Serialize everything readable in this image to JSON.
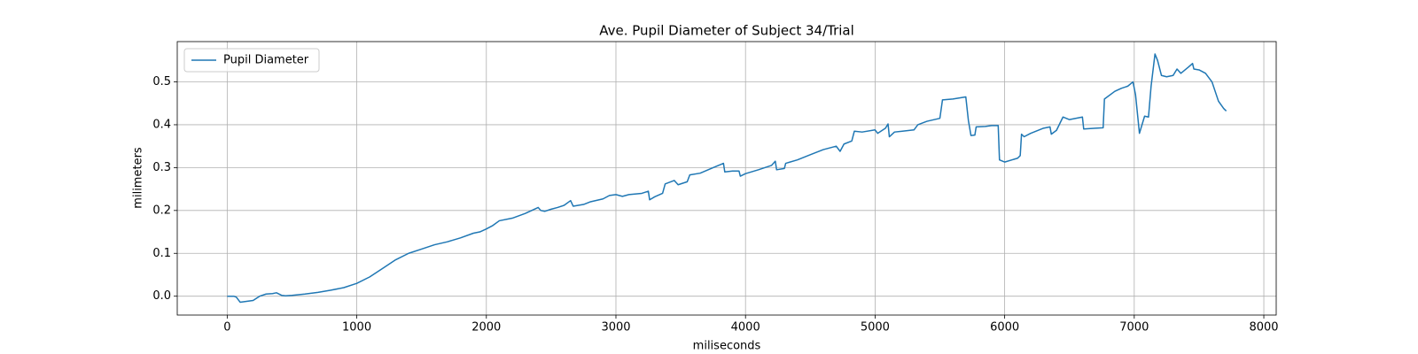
{
  "chart_data": {
    "type": "line",
    "title": "Ave. Pupil Diameter of Subject 34/Trial",
    "x_label": "miliseconds",
    "y_label": "milimeters",
    "xlim": [
      -385.5,
      8095.5
    ],
    "ylim": [
      -0.044,
      0.594
    ],
    "xticks": [
      0,
      1000,
      2000,
      3000,
      4000,
      5000,
      6000,
      7000,
      8000
    ],
    "yticks": [
      {
        "value": 0,
        "label": "0.0"
      },
      0.1,
      0.2,
      0.3,
      0.4,
      0.5
    ],
    "grid": true,
    "legend": "upper left",
    "x": [
      0,
      50,
      70,
      100,
      150,
      200,
      250,
      300,
      350,
      380,
      420,
      450,
      500,
      600,
      700,
      800,
      900,
      1000,
      1100,
      1200,
      1300,
      1400,
      1500,
      1600,
      1700,
      1800,
      1900,
      1950,
      2000,
      2050,
      2100,
      2200,
      2300,
      2400,
      2420,
      2450,
      2500,
      2550,
      2600,
      2650,
      2670,
      2750,
      2800,
      2900,
      2950,
      3000,
      3050,
      3100,
      3200,
      3250,
      3260,
      3300,
      3360,
      3380,
      3450,
      3480,
      3550,
      3570,
      3650,
      3750,
      3830,
      3840,
      3900,
      3950,
      3960,
      4000,
      4100,
      4200,
      4230,
      4240,
      4300,
      4310,
      4400,
      4500,
      4600,
      4700,
      4730,
      4760,
      4820,
      4840,
      4900,
      5000,
      5020,
      5080,
      5100,
      5110,
      5150,
      5300,
      5330,
      5400,
      5500,
      5520,
      5600,
      5700,
      5720,
      5740,
      5770,
      5780,
      5850,
      5900,
      5950,
      5960,
      6000,
      6100,
      6120,
      6130,
      6150,
      6200,
      6300,
      6350,
      6360,
      6400,
      6450,
      6500,
      6600,
      6610,
      6700,
      6760,
      6770,
      6850,
      6900,
      6950,
      6990,
      7010,
      7040,
      7080,
      7110,
      7130,
      7160,
      7180,
      7210,
      7250,
      7300,
      7330,
      7360,
      7420,
      7450,
      7460,
      7500,
      7550,
      7600,
      7650,
      7690,
      7710
    ],
    "series": [
      {
        "name": "Pupil Diameter",
        "color": "#1f77b4",
        "values": [
          0,
          0,
          -0.002,
          -0.014,
          -0.012,
          -0.01,
          0,
          0.005,
          0.006,
          0.008,
          0.002,
          0.001,
          0.002,
          0.005,
          0.009,
          0.014,
          0.02,
          0.03,
          0.045,
          0.065,
          0.085,
          0.1,
          0.11,
          0.12,
          0.127,
          0.136,
          0.147,
          0.15,
          0.157,
          0.165,
          0.176,
          0.182,
          0.193,
          0.207,
          0.2,
          0.198,
          0.203,
          0.207,
          0.212,
          0.223,
          0.21,
          0.214,
          0.22,
          0.227,
          0.235,
          0.237,
          0.233,
          0.237,
          0.24,
          0.245,
          0.225,
          0.232,
          0.24,
          0.262,
          0.27,
          0.26,
          0.267,
          0.283,
          0.287,
          0.3,
          0.31,
          0.29,
          0.292,
          0.292,
          0.28,
          0.286,
          0.295,
          0.305,
          0.315,
          0.295,
          0.298,
          0.31,
          0.318,
          0.33,
          0.342,
          0.35,
          0.338,
          0.355,
          0.362,
          0.385,
          0.383,
          0.388,
          0.38,
          0.392,
          0.402,
          0.372,
          0.383,
          0.388,
          0.4,
          0.408,
          0.415,
          0.458,
          0.46,
          0.465,
          0.41,
          0.375,
          0.376,
          0.395,
          0.396,
          0.398,
          0.398,
          0.318,
          0.313,
          0.322,
          0.328,
          0.378,
          0.372,
          0.38,
          0.392,
          0.395,
          0.378,
          0.387,
          0.418,
          0.412,
          0.418,
          0.39,
          0.392,
          0.393,
          0.46,
          0.478,
          0.485,
          0.49,
          0.5,
          0.47,
          0.38,
          0.42,
          0.418,
          0.49,
          0.565,
          0.55,
          0.515,
          0.512,
          0.515,
          0.53,
          0.52,
          0.535,
          0.543,
          0.53,
          0.528,
          0.52,
          0.5,
          0.455,
          0.438,
          0.432
        ]
      }
    ]
  }
}
